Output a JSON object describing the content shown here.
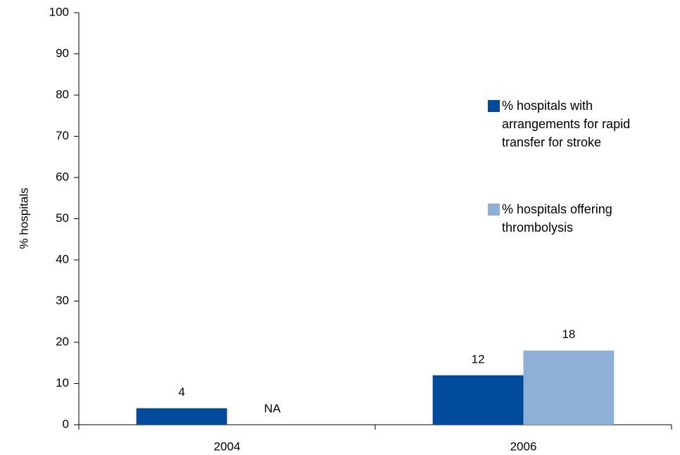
{
  "chart_data": {
    "type": "bar",
    "y_label": "% hospitals",
    "categories": [
      "2004",
      "2006"
    ],
    "series": [
      {
        "name": "% hospitals with arrangements for rapid transfer for stroke",
        "color": "#004b9b",
        "values": [
          4,
          12
        ]
      },
      {
        "name": "% hospitals offering thrombolysis",
        "color": "#8eb0d6",
        "values": [
          null,
          18
        ],
        "value_labels": [
          "NA",
          "18"
        ]
      }
    ],
    "ylim": [
      0,
      100
    ],
    "yticks": [
      0,
      10,
      20,
      30,
      40,
      50,
      60,
      70,
      80,
      90,
      100
    ],
    "grid": false,
    "legend": "right"
  }
}
